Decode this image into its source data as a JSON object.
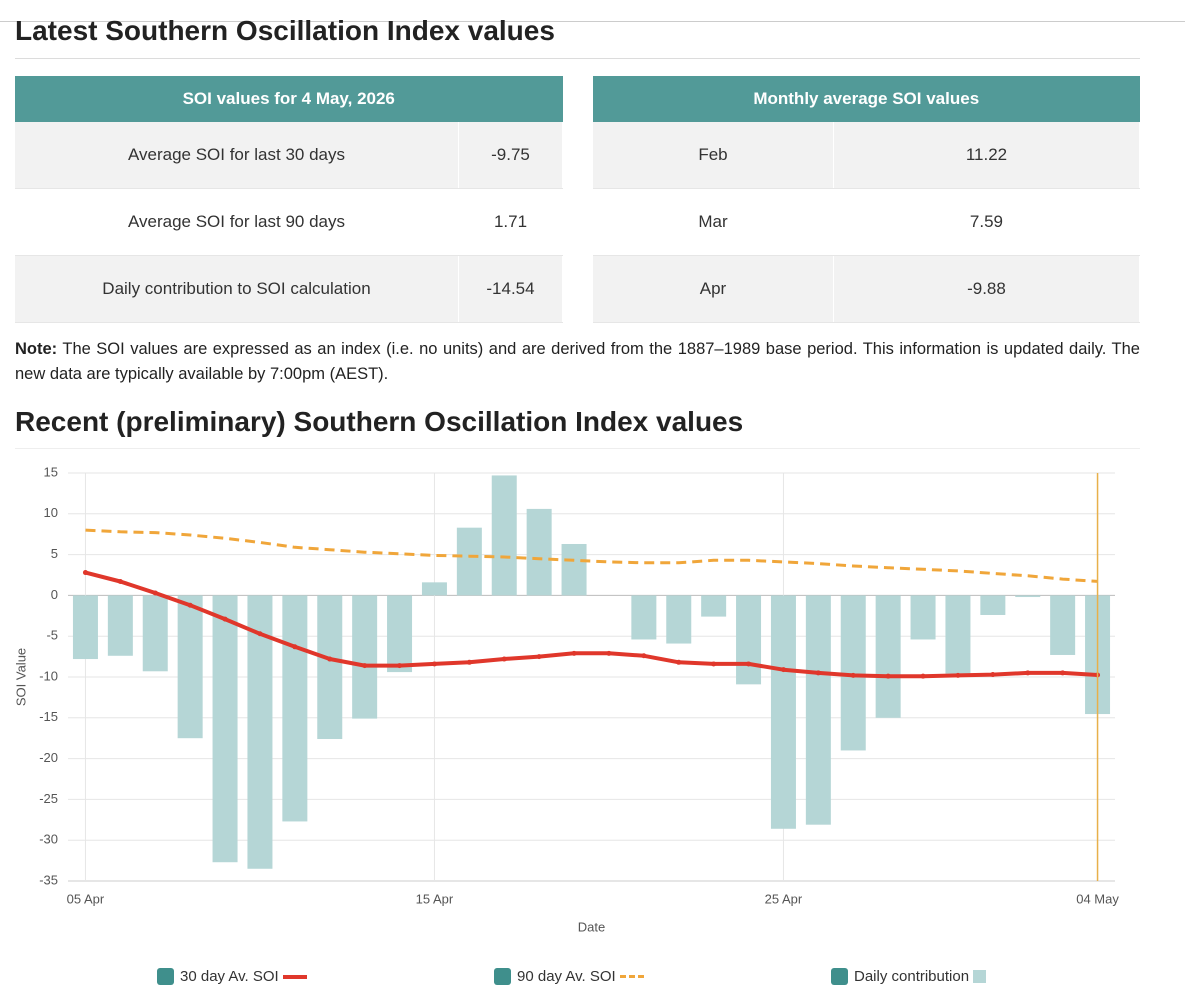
{
  "header": {
    "title": "Latest Southern Oscillation Index values"
  },
  "tables": [
    {
      "title": "SOI values for 4 May, 2026",
      "rows": [
        [
          "Average SOI for last 30 days",
          "-9.75"
        ],
        [
          "Average SOI for last 90 days",
          "1.71"
        ],
        [
          "Daily contribution to SOI calculation",
          "-14.54"
        ]
      ]
    },
    {
      "title": "Monthly average SOI values",
      "rows": [
        [
          "Feb",
          "11.22"
        ],
        [
          "Mar",
          "7.59"
        ],
        [
          "Apr",
          "-9.88"
        ]
      ]
    }
  ],
  "note": {
    "label": "Note:",
    "text": "The SOI values are expressed as an index (i.e. no units) and are derived from the 1887–1989 base period. This information is updated daily. The new data are typically available by 7:00pm (AEST)."
  },
  "section_title": "Recent (preliminary) Southern Oscillation Index values",
  "chart_data": {
    "type": "combo",
    "x_label": "Date",
    "y_label": "SOI Value",
    "categories": [
      "05 Apr",
      null,
      null,
      null,
      null,
      null,
      null,
      null,
      null,
      null,
      "15 Apr",
      null,
      null,
      null,
      null,
      null,
      null,
      null,
      null,
      null,
      "25 Apr",
      null,
      null,
      null,
      null,
      null,
      null,
      null,
      null,
      "04 May"
    ],
    "ylim": [
      -35,
      15
    ],
    "yticks": [
      15,
      10,
      5,
      0,
      -5,
      -10,
      -15,
      -20,
      -25,
      -30,
      -35
    ],
    "grid": true,
    "series": [
      {
        "name": "30 day Av. SOI",
        "type": "line",
        "line_style": "solid",
        "color": "#e0372b",
        "values": [
          2.8,
          1.7,
          0.3,
          -1.2,
          -2.9,
          -4.7,
          -6.3,
          -7.8,
          -8.6,
          -8.6,
          -8.4,
          -8.2,
          -7.8,
          -7.5,
          -7.1,
          -7.1,
          -7.4,
          -8.2,
          -8.4,
          -8.4,
          -9.1,
          -9.5,
          -9.8,
          -9.9,
          -9.9,
          -9.8,
          -9.7,
          -9.5,
          -9.5,
          -9.75
        ]
      },
      {
        "name": "90 day Av. SOI",
        "type": "line",
        "line_style": "dashed",
        "color": "#f0a63a",
        "values": [
          8.0,
          7.8,
          7.7,
          7.4,
          7.0,
          6.5,
          5.9,
          5.6,
          5.3,
          5.1,
          4.9,
          4.8,
          4.7,
          4.5,
          4.3,
          4.1,
          4.0,
          4.0,
          4.3,
          4.3,
          4.1,
          3.9,
          3.6,
          3.4,
          3.2,
          3.0,
          2.7,
          2.4,
          2.0,
          1.71
        ]
      },
      {
        "name": "Daily contribution",
        "type": "bar",
        "color": "#b5d6d6",
        "values": [
          -7.8,
          -7.4,
          -9.3,
          -17.5,
          -32.7,
          -33.5,
          -27.7,
          -17.6,
          -15.1,
          -9.4,
          1.6,
          8.3,
          14.7,
          10.6,
          6.3,
          0,
          -5.4,
          -5.9,
          -2.6,
          -10.9,
          -28.6,
          -28.1,
          -19.0,
          -15.0,
          -5.4,
          -9.6,
          -2.4,
          -0.2,
          -7.3,
          -14.54
        ]
      }
    ]
  }
}
